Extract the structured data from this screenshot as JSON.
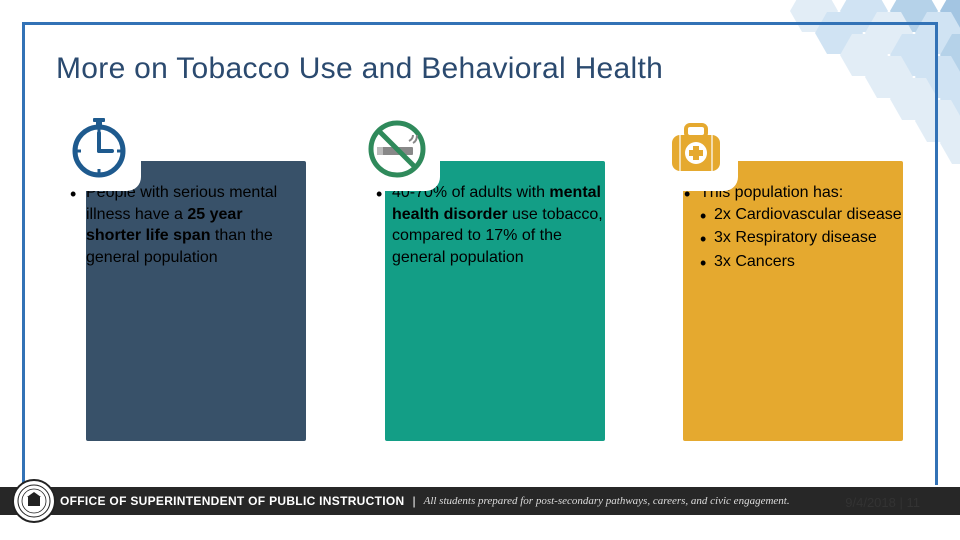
{
  "title": "More on Tobacco Use and Behavioral Health",
  "border_color": "#3272b6",
  "hex_colors": [
    "#c7ddef",
    "#a3c9e8",
    "#6ea6d4",
    "#4a8cc7"
  ],
  "cards": [
    {
      "bg": "#385169",
      "icon": "clock",
      "icon_color": "#1e5a8e",
      "text_html": "People with serious mental illness have a <b>25 year shorter life span</b> than the general population"
    },
    {
      "bg": "#139e86",
      "icon": "nosmoke",
      "icon_color": "#2f8a5b",
      "text_html": "40-70% of adults with <b>mental health disorder</b> use tobacco, compared to 17% of the general population"
    },
    {
      "bg": "#e5a92f",
      "icon": "medkit",
      "icon_color": "#e5a92f",
      "text_html": "This population has:",
      "subitems": [
        "2x Cardiovascular disease",
        "3x Respiratory disease",
        "3x Cancers"
      ]
    }
  ],
  "footer": {
    "office": "OFFICE OF SUPERINTENDENT OF PUBLIC INSTRUCTION",
    "tagline": "All students prepared for post-secondary pathways, careers, and civic engagement."
  },
  "date": "9/4/2018",
  "page": "11"
}
